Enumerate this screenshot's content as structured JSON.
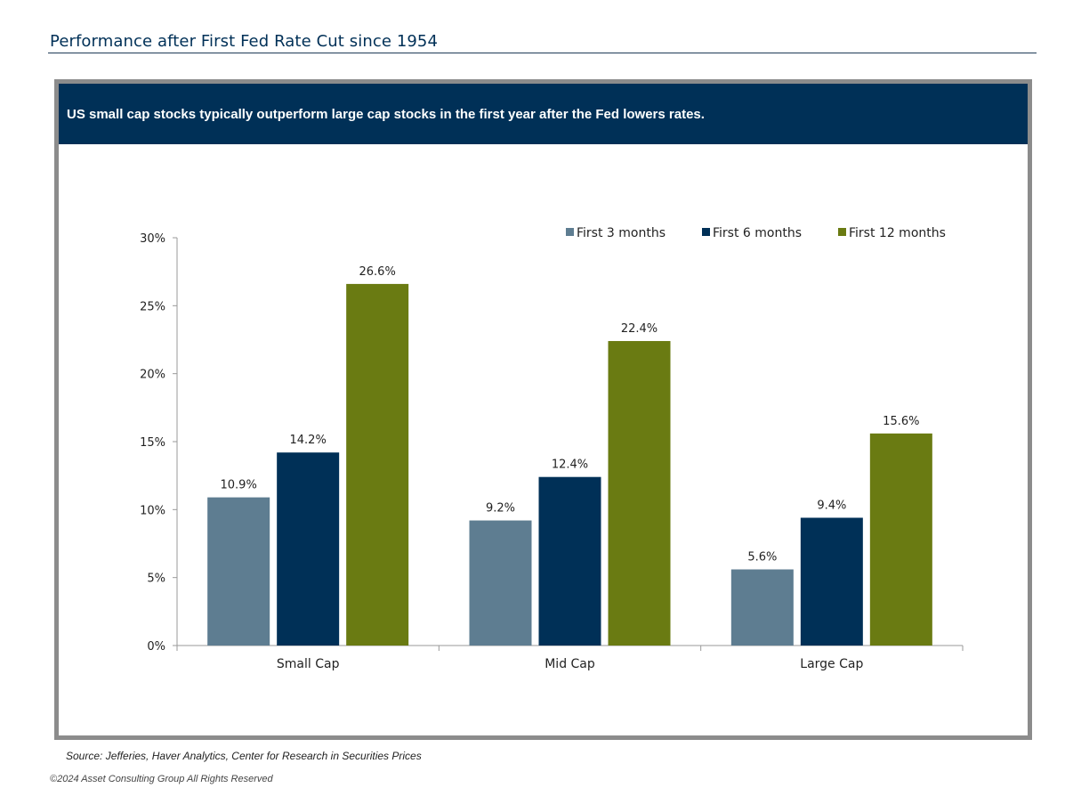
{
  "header": {
    "title": "Performance after First Fed Rate Cut since 1954"
  },
  "banner": {
    "text": "US small cap stocks typically outperform large cap stocks in the first year after the Fed lowers rates."
  },
  "footer": {
    "source": "Source:  Jefferies, Haver Analytics, Center for Research in Securities Prices",
    "copyright": "©2024 Asset Consulting Group All Rights Reserved"
  },
  "colors": {
    "banner": "#003057",
    "series": [
      "#5e7d91",
      "#003057",
      "#6a7b12"
    ]
  },
  "chart_data": {
    "type": "bar",
    "title": "",
    "xlabel": "",
    "ylabel": "",
    "categories": [
      "Small Cap",
      "Mid Cap",
      "Large Cap"
    ],
    "series": [
      {
        "name": "First 3 months",
        "values": [
          10.9,
          9.2,
          5.6
        ],
        "labels": [
          "10.9%",
          "9.2%",
          "5.6%"
        ]
      },
      {
        "name": "First 6 months",
        "values": [
          14.2,
          12.4,
          9.4
        ],
        "labels": [
          "14.2%",
          "12.4%",
          "9.4%"
        ]
      },
      {
        "name": "First 12 months",
        "values": [
          26.6,
          22.4,
          15.6
        ],
        "labels": [
          "26.6%",
          "22.4%",
          "15.6%"
        ]
      }
    ],
    "ylim": [
      0,
      30
    ],
    "yticks": [
      0,
      5,
      10,
      15,
      20,
      25,
      30
    ],
    "ytick_labels": [
      "0%",
      "5%",
      "10%",
      "15%",
      "20%",
      "25%",
      "30%"
    ],
    "grid": false,
    "legend_position": "top-right"
  }
}
